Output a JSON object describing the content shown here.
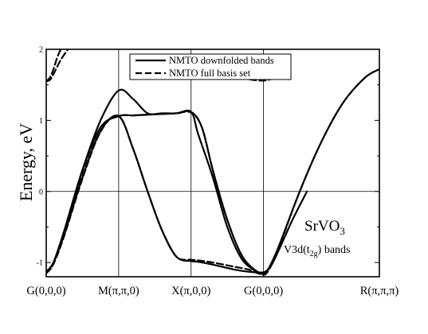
{
  "chart_data": {
    "type": "line",
    "ylabel": "Energy, eV",
    "xlabel": "",
    "ylim": [
      -1.2,
      2.0
    ],
    "yticks": [
      -1,
      0,
      1,
      2
    ],
    "ytick_labels": [
      "-1",
      "0",
      "1",
      "2"
    ],
    "kpoints": [
      {
        "label": "G(0,0,0)",
        "x": 0
      },
      {
        "label": "M(π,π,0)",
        "x": 1
      },
      {
        "label": "X(π,0,0)",
        "x": 2
      },
      {
        "label": "G(0,0,0)",
        "x": 3
      },
      {
        "label": "R(π,π,π)",
        "x": 4.6
      }
    ],
    "xlim": [
      0,
      4.6
    ],
    "legend": {
      "position": "top-center",
      "entries": [
        {
          "label": "NMTO downfolded  bands",
          "style": "solid"
        },
        {
          "label": "NMTO full basis set",
          "style": "dashed"
        }
      ]
    },
    "annotations": {
      "compound": "SrVO",
      "compound_sub": "3",
      "bands_prefix": "V3d(t",
      "bands_sub": "2g",
      "bands_suffix": ") bands"
    },
    "series": [
      {
        "style": "solid",
        "x": [
          0,
          0.1,
          0.25,
          0.5,
          0.75,
          1.0,
          1.2,
          1.4,
          1.6,
          1.8,
          2.0,
          2.1,
          2.3,
          2.6,
          2.8,
          3.0,
          3.05,
          3.2,
          3.5,
          3.8,
          4.1,
          4.4,
          4.6
        ],
        "y": [
          -1.13,
          -1.0,
          -0.6,
          0.2,
          0.85,
          1.06,
          0.6,
          0.0,
          -0.55,
          -0.92,
          -0.98,
          -0.99,
          -1.03,
          -1.1,
          -1.13,
          -1.14,
          -1.12,
          -0.8,
          0.0,
          0.7,
          1.25,
          1.6,
          1.72
        ]
      },
      {
        "style": "solid",
        "x": [
          0,
          0.1,
          0.25,
          0.5,
          0.75,
          1.0,
          1.2,
          1.4,
          1.6,
          1.8,
          2.0,
          2.1,
          2.3,
          2.5,
          2.7,
          2.9,
          3.0,
          3.1,
          3.2,
          3.4,
          3.6
        ],
        "y": [
          -1.13,
          -1.0,
          -0.55,
          0.3,
          1.0,
          1.42,
          1.3,
          1.1,
          1.1,
          1.1,
          1.12,
          0.8,
          0.2,
          -0.5,
          -0.95,
          -1.12,
          -1.14,
          -1.05,
          -0.85,
          -0.4,
          0.0
        ]
      },
      {
        "style": "solid",
        "x": [
          0,
          0.1,
          0.25,
          0.5,
          0.75,
          1.0,
          1.2,
          1.4,
          1.6,
          1.8,
          2.0,
          2.15,
          2.3,
          2.5,
          2.7,
          2.9,
          3.0
        ],
        "y": [
          -1.13,
          -1.0,
          -0.55,
          0.3,
          0.9,
          1.06,
          1.07,
          1.08,
          1.09,
          1.1,
          1.12,
          0.9,
          0.3,
          -0.4,
          -0.9,
          -1.12,
          -1.14
        ]
      },
      {
        "style": "dashed",
        "x": [
          0,
          0.1,
          0.25,
          0.5,
          0.75,
          1.0,
          1.2,
          1.4,
          1.6,
          1.8,
          2.0,
          2.1,
          2.3,
          2.6,
          2.8,
          2.95,
          3.05,
          3.2,
          3.5,
          3.8,
          4.1,
          4.4,
          4.6
        ],
        "y": [
          -1.15,
          -1.02,
          -0.62,
          0.18,
          0.84,
          1.06,
          0.6,
          0.0,
          -0.55,
          -0.92,
          -0.96,
          -0.97,
          -1.0,
          -1.06,
          -1.1,
          -1.16,
          -1.14,
          -0.82,
          0.0,
          0.7,
          1.25,
          1.6,
          1.72
        ]
      },
      {
        "style": "dashed",
        "x": [
          0,
          0.1,
          0.25,
          0.5,
          0.75,
          1.0,
          1.2,
          1.4,
          1.6,
          1.8,
          2.0,
          2.15,
          2.3,
          2.5,
          2.7,
          2.9,
          3.0
        ],
        "y": [
          -1.15,
          -1.02,
          -0.57,
          0.28,
          0.9,
          1.06,
          1.07,
          1.08,
          1.09,
          1.1,
          1.11,
          0.9,
          0.3,
          -0.4,
          -0.9,
          -1.13,
          -1.16
        ]
      },
      {
        "style": "dashed",
        "x": [
          0,
          0.05,
          0.1,
          0.2,
          0.3
        ],
        "y": [
          1.55,
          1.57,
          1.65,
          1.85,
          2.0
        ]
      },
      {
        "style": "dashed",
        "x": [
          0,
          0.05,
          0.1,
          0.15,
          0.2
        ],
        "y": [
          1.55,
          1.6,
          1.72,
          1.88,
          2.0
        ]
      },
      {
        "style": "dashed",
        "x": [
          2.55,
          2.7,
          2.85,
          3.0,
          3.1,
          3.2
        ],
        "y": [
          1.62,
          1.6,
          1.57,
          1.56,
          1.58,
          1.62
        ]
      }
    ]
  }
}
